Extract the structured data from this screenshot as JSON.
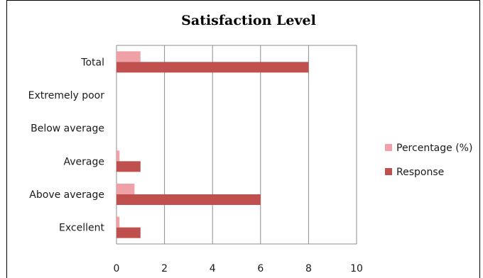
{
  "chart_data": {
    "type": "bar",
    "orientation": "horizontal",
    "title": "Satisfaction Level",
    "categories": [
      "Excellent",
      "Above average",
      "Average",
      "Below average",
      "Extremely poor",
      "Total"
    ],
    "series": [
      {
        "name": "Response",
        "color": "#c0504d",
        "values": [
          1,
          6,
          1,
          0,
          0,
          8
        ]
      },
      {
        "name": "Percentage (%)",
        "color": "#f0a1a8",
        "values": [
          0.125,
          0.75,
          0.125,
          0,
          0,
          1
        ]
      }
    ],
    "xlim": [
      0,
      10
    ],
    "xticks": [
      0,
      2,
      4,
      6,
      8,
      10
    ],
    "grid": true,
    "legend_position": "right"
  }
}
